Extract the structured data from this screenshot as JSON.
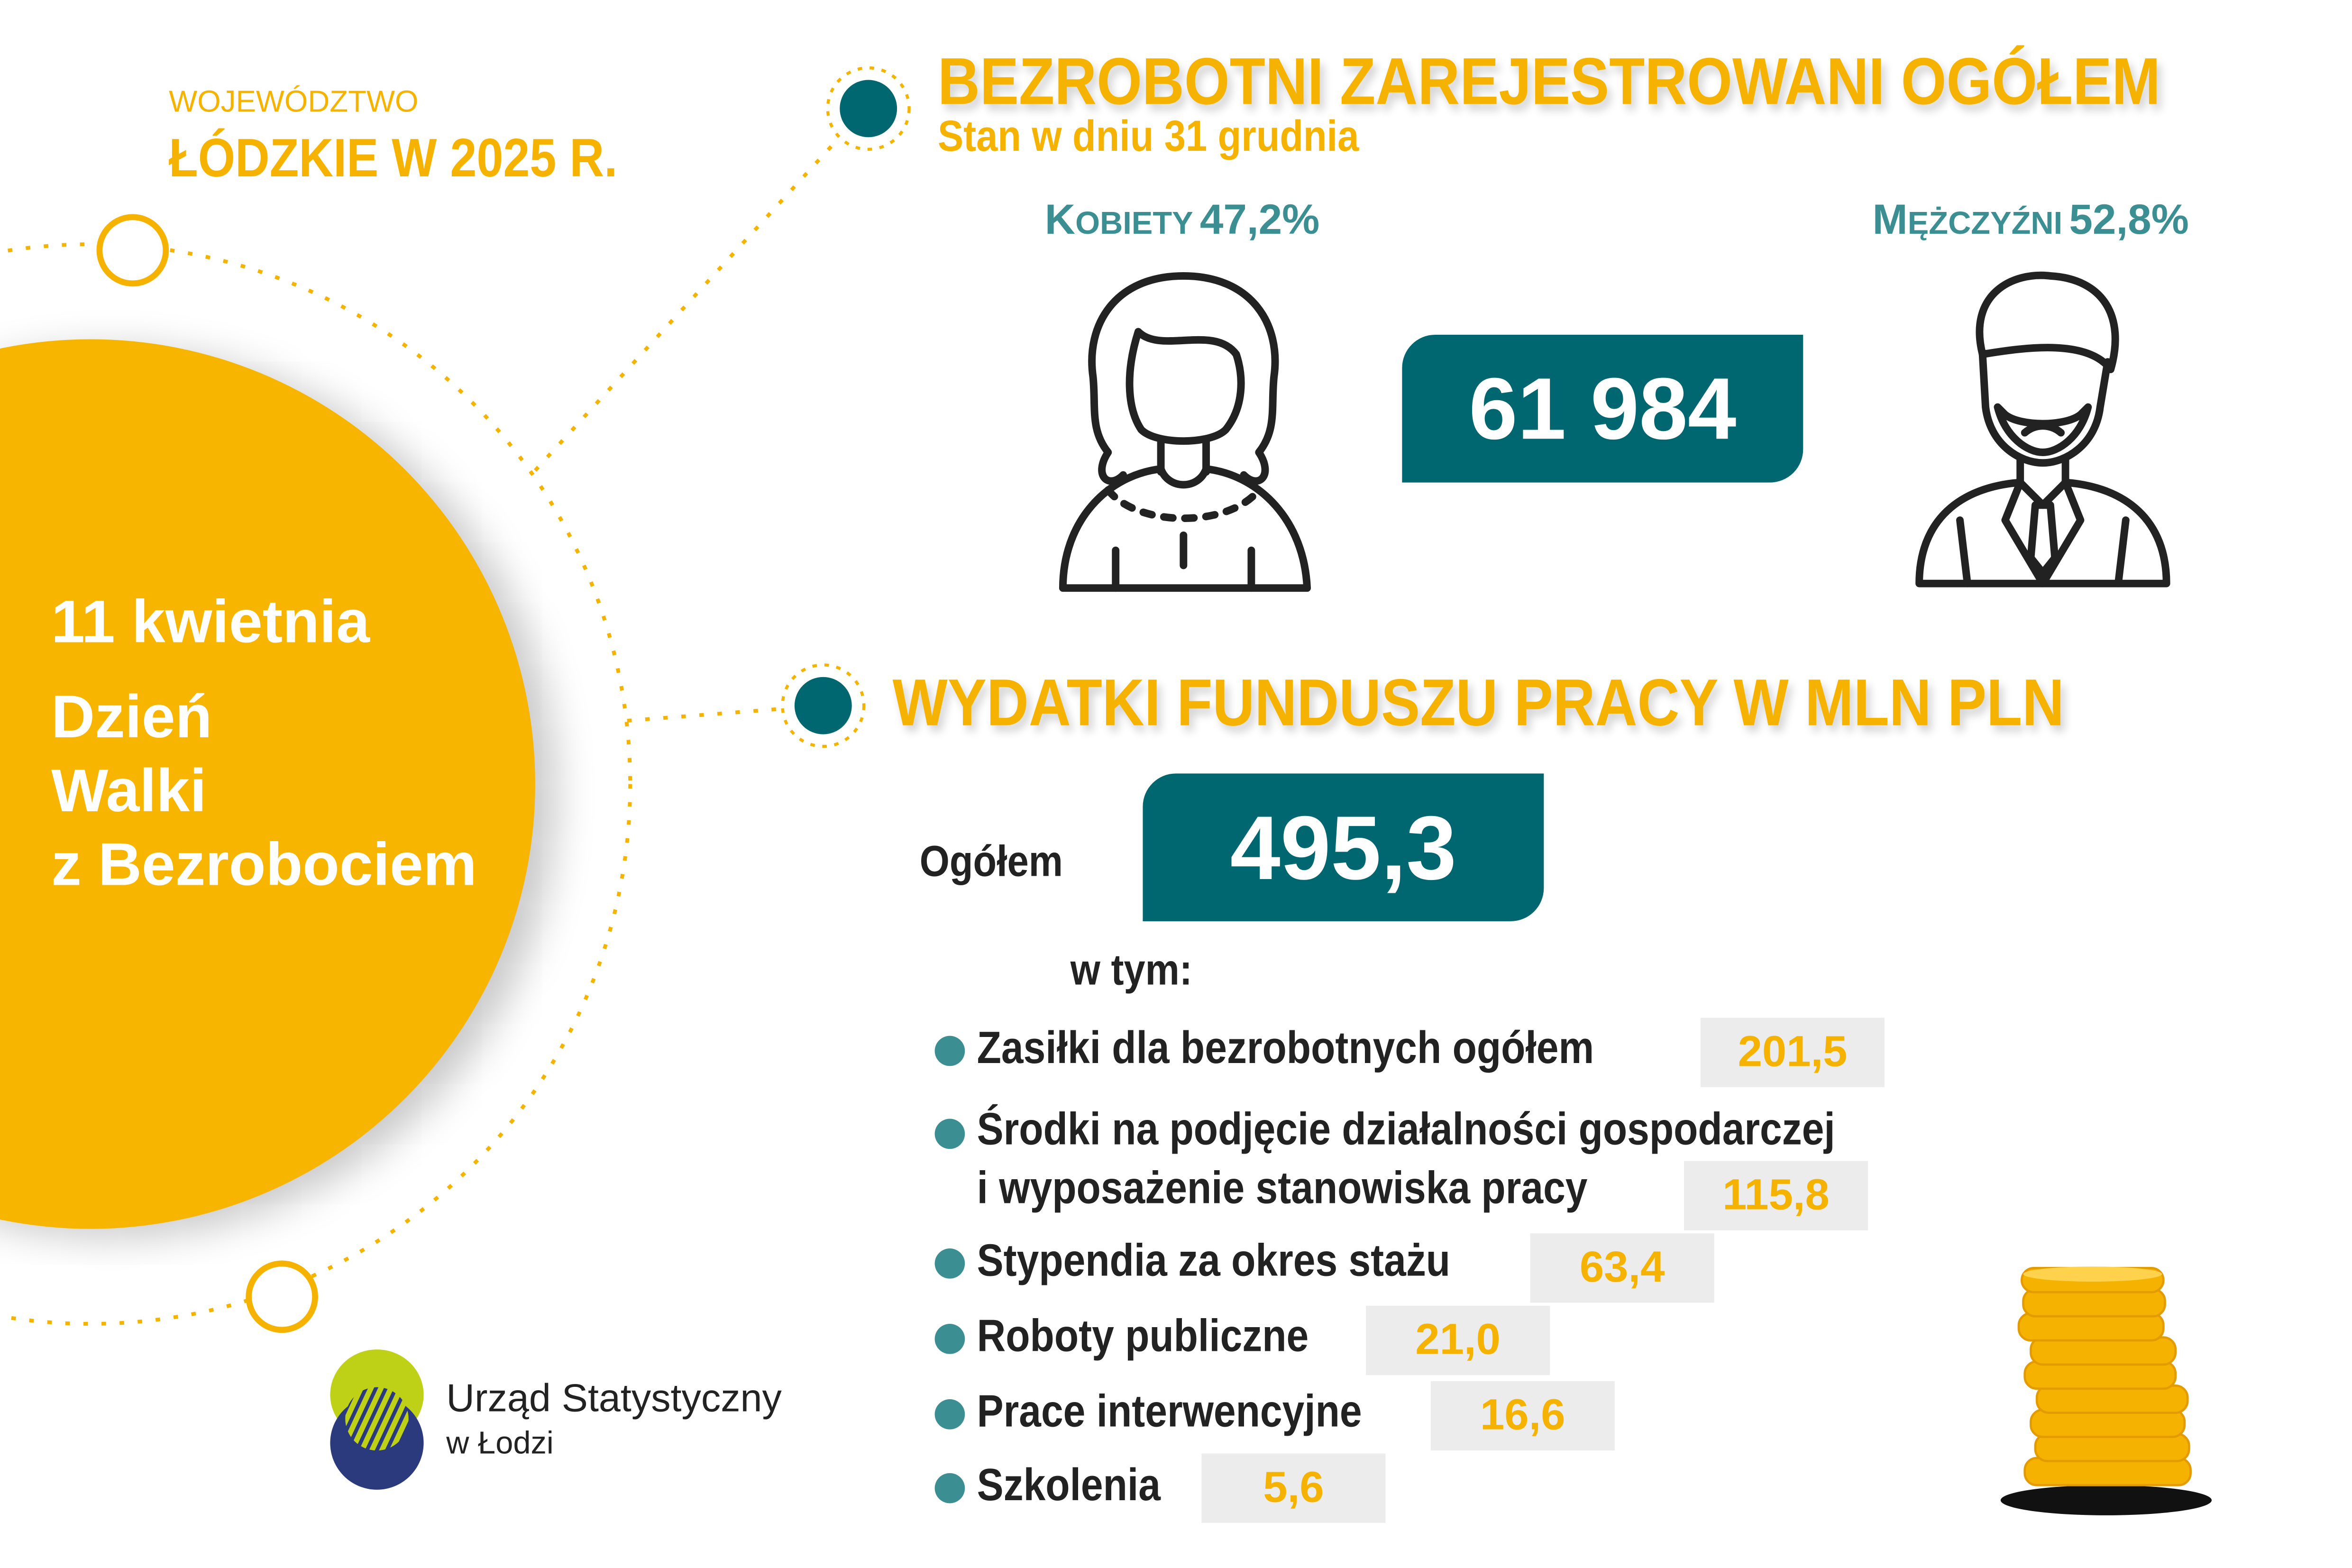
{
  "header": {
    "region_label": "WOJEWÓDZTWO",
    "region_title": "ŁÓDZKIE W 2025 R."
  },
  "circle": {
    "date": "11 kwietnia",
    "line1": "Dzień",
    "line2": "Walki",
    "line3": "z Bezrobociem"
  },
  "unemployed": {
    "title": "BEZROBOTNI ZAREJESTROWANI OGÓŁEM",
    "subtitle": "Stan w dniu 31 grudnia",
    "women_label_initial": "K",
    "women_label_rest": "OBIETY",
    "women_pct": "47,2%",
    "men_label_initial": "M",
    "men_label_rest": "ĘŻCZYŹNI",
    "men_pct": "52,8%",
    "total": "61 984",
    "women_share": 47.2,
    "men_share": 52.8
  },
  "fund": {
    "title": "WYDATKI FUNDUSZU PRACY W MLN PLN",
    "total_label": "Ogółem",
    "total": "495,3",
    "including_label": "w tym:",
    "items": [
      {
        "label": "Zasiłki dla bezrobotnych ogółem",
        "value": "201,5"
      },
      {
        "label": "Środki na podjęcie działalności gospodarczej",
        "label2": "i wyposażenie stanowiska pracy",
        "value": "115,8"
      },
      {
        "label": "Stypendia za okres stażu",
        "value": "63,4"
      },
      {
        "label": "Roboty publiczne",
        "value": "21,0"
      },
      {
        "label": "Prace interwencyjne",
        "value": "16,6"
      },
      {
        "label": "Szkolenia",
        "value": "5,6"
      }
    ]
  },
  "logo": {
    "line1": "Urząd Statystyczny",
    "line2": "w Łodzi"
  },
  "colors": {
    "yellow": "#f5b300",
    "teal_dark": "#006670",
    "teal": "#3b8f93",
    "grey_box": "#ececec",
    "logo_green": "#bfd117",
    "logo_blue": "#2b3a7c"
  }
}
